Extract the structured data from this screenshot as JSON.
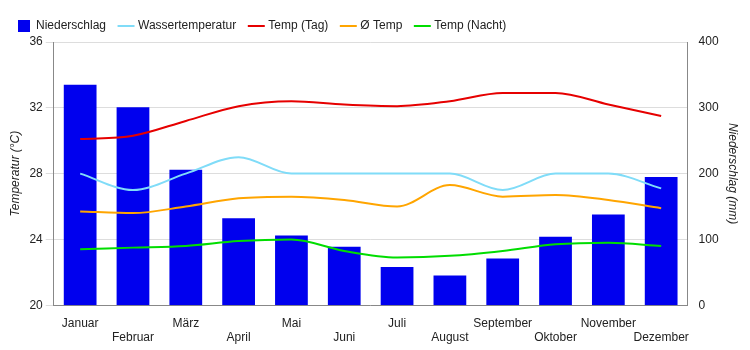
{
  "chart_data": {
    "type": "bar",
    "categories": [
      "Januar",
      "Februar",
      "März",
      "April",
      "Mai",
      "Juni",
      "Juli",
      "August",
      "September",
      "Oktober",
      "November",
      "Dezember"
    ],
    "series": [
      {
        "name": "Niederschlag",
        "type": "bar",
        "axis": "y2",
        "color": "#0000ee",
        "values": [
          335,
          301,
          206,
          132,
          106,
          89,
          58,
          45,
          71,
          104,
          138,
          195
        ]
      },
      {
        "name": "Wassertemperatur",
        "type": "line",
        "color": "#80dcf8",
        "values": [
          28.0,
          27.0,
          28.0,
          29.0,
          28.0,
          28.0,
          28.0,
          28.0,
          27.0,
          28.0,
          28.0,
          27.1
        ]
      },
      {
        "name": "Temp (Tag)",
        "type": "line",
        "color": "#e60000",
        "values": [
          30.1,
          30.3,
          31.2,
          32.1,
          32.4,
          32.2,
          32.1,
          32.4,
          32.9,
          32.9,
          32.2,
          31.5
        ]
      },
      {
        "name": "Ø Temp",
        "type": "line",
        "color": "#ffa500",
        "values": [
          25.7,
          25.6,
          26.0,
          26.5,
          26.6,
          26.4,
          26.0,
          27.3,
          26.6,
          26.7,
          26.4,
          25.9
        ]
      },
      {
        "name": "Temp (Nacht)",
        "type": "line",
        "color": "#00dd00",
        "values": [
          23.4,
          23.5,
          23.6,
          23.9,
          24.0,
          23.3,
          22.9,
          23.0,
          23.3,
          23.7,
          23.8,
          23.6
        ]
      }
    ],
    "y_label": "Temperatur (°C)",
    "y2_label": "Niederschlag (mm)",
    "ylim": [
      20,
      36
    ],
    "yticks": [
      20,
      24,
      28,
      32,
      36
    ],
    "y2lim": [
      0,
      400
    ],
    "y2ticks": [
      0,
      100,
      200,
      300,
      400
    ],
    "grid": true,
    "legend": "top"
  }
}
